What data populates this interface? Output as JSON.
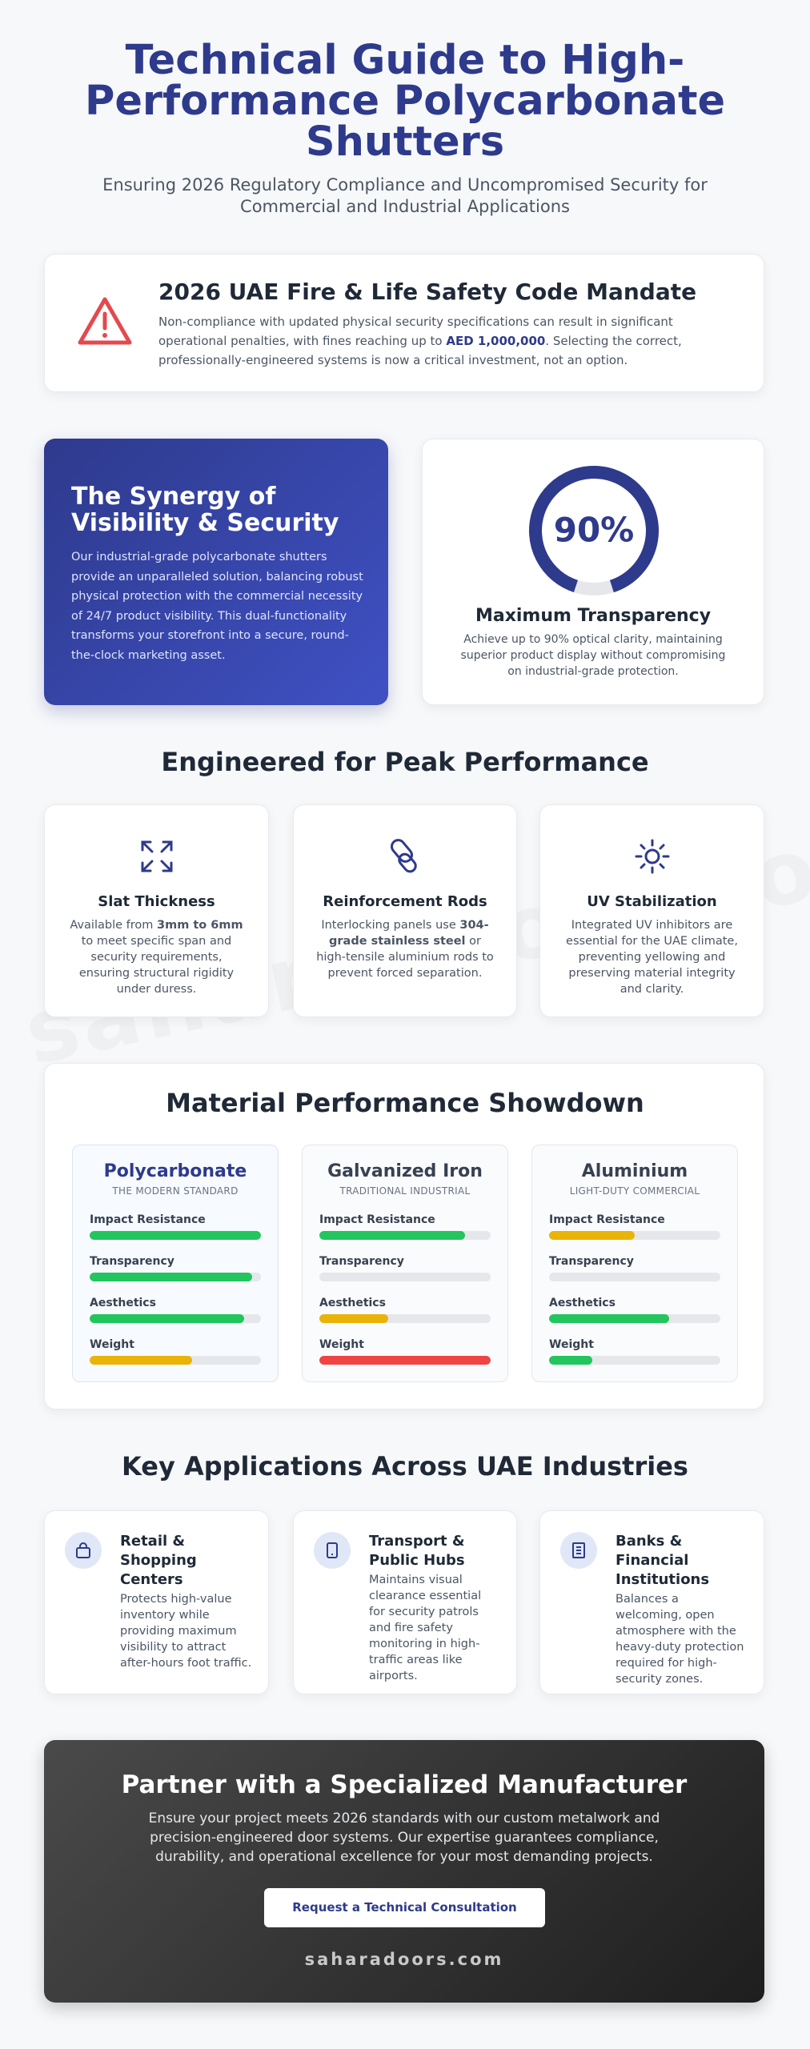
{
  "header": {
    "title": "Technical Guide to High-Performance Polycarbonate Shutters",
    "subtitle": "Ensuring 2026 Regulatory Compliance and Uncompromised Security for Commercial and Industrial Applications"
  },
  "alert": {
    "title": "2026 UAE Fire & Life Safety Code Mandate",
    "text_before": "Non-compliance with updated physical security specifications can result in significant operational penalties, with fines reaching up to ",
    "highlight": "AED 1,000,000",
    "text_after": ". Selecting the correct, professionally-engineered systems is now a critical investment, not an option."
  },
  "synergy": {
    "title": "The Synergy of Visibility & Security",
    "text": "Our industrial-grade polycarbonate shutters provide an unparalleled solution, balancing robust physical protection with the commercial necessity of 24/7 product visibility. This dual-functionality transforms your storefront into a secure, round-the-clock marketing asset."
  },
  "transparency": {
    "ring": {
      "value": 90,
      "label": "90%"
    },
    "ring_max": 100,
    "color": "#2e3a8c",
    "track_color": "#e5e7eb",
    "title": "Maximum Transparency",
    "text": "Achieve up to 90% optical clarity, maintaining superior product display without compromising on industrial-grade protection."
  },
  "features": {
    "title": "Engineered for Peak Performance",
    "items": [
      {
        "title": "Slat Thickness",
        "parts": [
          "Available from ",
          "3mm to 6mm",
          " to meet specific span and security requirements, ensuring structural rigidity under duress."
        ]
      },
      {
        "title": "Reinforcement Rods",
        "parts": [
          "Interlocking panels use ",
          "304-grade stainless steel",
          " or high-tensile aluminium rods to prevent forced separation."
        ]
      },
      {
        "title": "UV Stabilization",
        "parts": [
          "Integrated UV inhibitors are essential for the UAE climate, preventing yellowing and preserving material integrity and clarity."
        ]
      }
    ]
  },
  "watermark": "saharadoors.com",
  "showdown": {
    "title": "Material Performance Showdown",
    "scale_max": 100,
    "track_color": "#e5e7eb",
    "materials": [
      {
        "name": "Polycarbonate",
        "subtitle": "THE MODERN STANDARD",
        "metrics": [
          {
            "name": "Impact Resistance",
            "value": 100,
            "color": "#22c55e"
          },
          {
            "name": "Transparency",
            "value": 95,
            "color": "#22c55e"
          },
          {
            "name": "Aesthetics",
            "value": 90,
            "color": "#22c55e"
          },
          {
            "name": "Weight",
            "value": 60,
            "color": "#eab308"
          }
        ]
      },
      {
        "name": "Galvanized Iron",
        "subtitle": "TRADITIONAL INDUSTRIAL",
        "metrics": [
          {
            "name": "Impact Resistance",
            "value": 85,
            "color": "#22c55e"
          },
          {
            "name": "Transparency",
            "value": 0,
            "color": "#ef4444"
          },
          {
            "name": "Aesthetics",
            "value": 40,
            "color": "#eab308"
          },
          {
            "name": "Weight",
            "value": 100,
            "color": "#ef4444"
          }
        ]
      },
      {
        "name": "Aluminium",
        "subtitle": "LIGHT-DUTY COMMERCIAL",
        "metrics": [
          {
            "name": "Impact Resistance",
            "value": 50,
            "color": "#eab308"
          },
          {
            "name": "Transparency",
            "value": 0,
            "color": "#ef4444"
          },
          {
            "name": "Aesthetics",
            "value": 70,
            "color": "#22c55e"
          },
          {
            "name": "Weight",
            "value": 25,
            "color": "#22c55e"
          }
        ]
      }
    ]
  },
  "applications": {
    "title": "Key Applications Across UAE Industries",
    "items": [
      {
        "title": "Retail & Shopping Centers",
        "text": "Protects high-value inventory while providing maximum visibility to attract after-hours foot traffic."
      },
      {
        "title": "Transport & Public Hubs",
        "text": "Maintains visual clearance essential for security patrols and fire safety monitoring in high-traffic areas like airports."
      },
      {
        "title": "Banks & Financial Institutions",
        "text": "Balances a welcoming, open atmosphere with the heavy-duty protection required for high-security zones."
      }
    ]
  },
  "cta": {
    "title": "Partner with a Specialized Manufacturer",
    "text": "Ensure your project meets 2026 standards with our custom metalwork and precision-engineered door systems. Our expertise guarantees compliance, durability, and operational excellence for your most demanding projects.",
    "button": "Request a Technical Consultation",
    "brand": "saharadoors.com"
  }
}
